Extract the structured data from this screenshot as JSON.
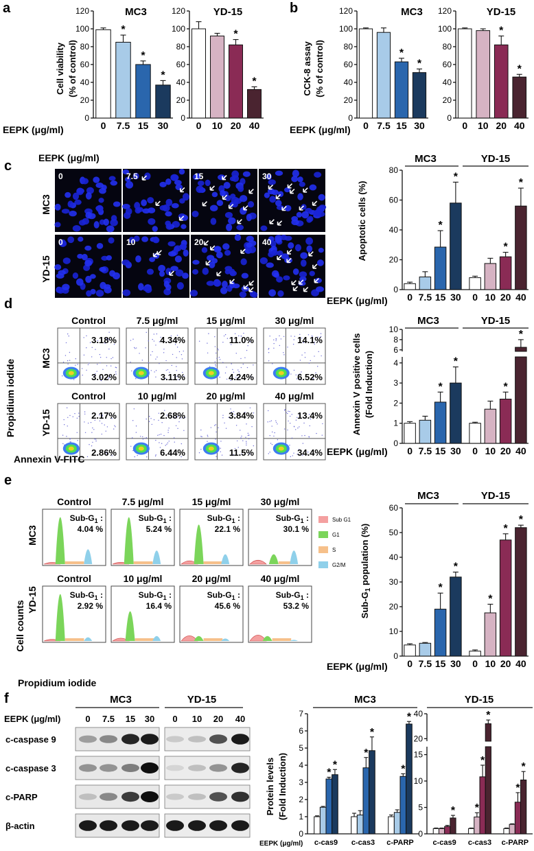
{
  "panel_letters": [
    "a",
    "b",
    "c",
    "d",
    "e",
    "f"
  ],
  "eepk_label": "EEPK (μg/ml)",
  "colors": {
    "white": "#ffffff",
    "mc3_1": "#a8cbe8",
    "mc3_2": "#2a66ad",
    "mc3_3": "#1b3a5e",
    "yd_1": "#d6b3c3",
    "yd_2": "#8a2b55",
    "yd_3": "#4a2430"
  },
  "panel_a": {
    "ylabel_line1": "Cell viability",
    "ylabel_line2": "(% of control)",
    "mc3_title": "MC3",
    "yd_title": "YD-15",
    "mc3_ticks": [
      "0",
      "7.5",
      "15",
      "30"
    ],
    "yd_ticks": [
      "0",
      "10",
      "20",
      "40"
    ]
  },
  "panel_b": {
    "ylabel_line1": "CCK-8 assay",
    "ylabel_line2": "(% of control)",
    "mc3_title": "MC3",
    "yd_title": "YD-15"
  },
  "panel_c": {
    "header": "EEPK (μg/ml)",
    "row_labels": [
      "MC3",
      "YD-15"
    ],
    "mc3_doses": [
      "0",
      "7.5",
      "15",
      "30"
    ],
    "yd_doses": [
      "0",
      "10",
      "20",
      "40"
    ],
    "ylabel": "Apoptotic cells (%)",
    "group_labels": [
      "MC3",
      "YD-15"
    ]
  },
  "panel_d": {
    "headers_mc3": [
      "Control",
      "7.5 μg/ml",
      "15 μg/ml",
      "30 μg/ml"
    ],
    "headers_yd": [
      "Control",
      "10 μg/ml",
      "20 μg/ml",
      "40 μg/ml"
    ],
    "mc3_upper": [
      "3.18%",
      "4.34%",
      "11.0%",
      "14.1%"
    ],
    "mc3_lower": [
      "3.02%",
      "3.11%",
      "4.24%",
      "6.52%"
    ],
    "yd_upper": [
      "2.17%",
      "2.68%",
      "3.84%",
      "13.4%"
    ],
    "yd_lower": [
      "2.86%",
      "6.44%",
      "11.5%",
      "34.4%"
    ],
    "row_labels": [
      "MC3",
      "YD-15"
    ],
    "y_axis": "Propidium iodide",
    "x_axis": "Annexin V-FITC",
    "ylabel_line1": "Annexin V positive cells",
    "ylabel_line2": "(Fold Induction)",
    "group_labels": [
      "MC3",
      "YD-15"
    ]
  },
  "panel_e": {
    "headers_mc3": [
      "Control",
      "7.5 μg/ml",
      "15 μg/ml",
      "30 μg/ml"
    ],
    "headers_yd": [
      "Control",
      "10 μg/ml",
      "20 μg/ml",
      "40 μg/ml"
    ],
    "subg1_label": "Sub-G",
    "subg1_sub": "1",
    "subg1_colon": " :",
    "mc3_values": [
      "4.04 %",
      "5.24 %",
      "22.1 %",
      "30.1 %"
    ],
    "yd_values": [
      "2.92 %",
      "16.4 %",
      "45.6 %",
      "53.2 %"
    ],
    "legend": [
      "Sub G1",
      "G1",
      "S",
      "G2/M"
    ],
    "legend_colors": [
      "#f4a0a0",
      "#7bd55a",
      "#f6c08a",
      "#8fd0ea"
    ],
    "row_labels": [
      "MC3",
      "YD-15"
    ],
    "y_axis": "Cell counts",
    "x_axis": "Propidium iodide",
    "ylabel_main": "Sub-G",
    "ylabel_sub": "1",
    "ylabel_rest": " population (%)",
    "group_labels": [
      "MC3",
      "YD-15"
    ]
  },
  "panel_f": {
    "mc3_title": "MC3",
    "yd_title": "YD-15",
    "eepk_label": "EEPK (μg/ml)",
    "mc3_doses": [
      "0",
      "7.5",
      "15",
      "30"
    ],
    "yd_doses": [
      "0",
      "10",
      "20",
      "40"
    ],
    "blot_labels": [
      "c-caspase 9",
      "c-caspase 3",
      "c-PARP",
      "β-actin"
    ],
    "ylabel_line1": "Protein levels",
    "ylabel_line2": "(Fold Induction)",
    "chart_mc3_title": "MC3",
    "chart_yd_title": "YD-15",
    "categories": [
      "c-cas9",
      "c-cas3",
      "c-PARP"
    ],
    "eepk_small": "EEPK (μg/ml)"
  },
  "chart_data": [
    {
      "type": "bar",
      "title": "MC3",
      "ylabel": "Cell viability (% of control)",
      "categories": [
        "0",
        "7.5",
        "15",
        "30"
      ],
      "values": [
        99,
        85,
        60,
        37
      ],
      "errors": [
        2,
        8,
        4,
        5
      ],
      "significant": [
        false,
        true,
        true,
        true
      ],
      "ylim": [
        0,
        120
      ],
      "yticks": [
        0,
        20,
        40,
        60,
        80,
        100,
        120
      ]
    },
    {
      "type": "bar",
      "title": "YD-15",
      "ylabel": "Cell viability (% of control)",
      "categories": [
        "0",
        "10",
        "20",
        "40"
      ],
      "values": [
        100,
        92,
        82,
        32
      ],
      "errors": [
        8,
        3,
        6,
        3
      ],
      "significant": [
        false,
        false,
        true,
        true
      ],
      "ylim": [
        0,
        120
      ],
      "yticks": [
        0,
        20,
        40,
        60,
        80,
        100,
        120
      ]
    },
    {
      "type": "bar",
      "title": "MC3",
      "ylabel": "CCK-8 assay (% of control)",
      "categories": [
        "0",
        "7.5",
        "15",
        "30"
      ],
      "values": [
        100,
        96,
        63,
        51
      ],
      "errors": [
        1,
        5,
        4,
        4
      ],
      "significant": [
        false,
        false,
        true,
        true
      ],
      "ylim": [
        0,
        120
      ],
      "yticks": [
        0,
        20,
        40,
        60,
        80,
        100,
        120
      ]
    },
    {
      "type": "bar",
      "title": "YD-15",
      "ylabel": "CCK-8 assay (% of control)",
      "categories": [
        "0",
        "10",
        "20",
        "40"
      ],
      "values": [
        100,
        98,
        82,
        46
      ],
      "errors": [
        1,
        2,
        10,
        3
      ],
      "significant": [
        false,
        false,
        true,
        true
      ],
      "ylim": [
        0,
        120
      ],
      "yticks": [
        0,
        20,
        40,
        60,
        80,
        100,
        120
      ]
    },
    {
      "type": "bar",
      "ylabel": "Apoptotic cells (%)",
      "categories": [
        "0",
        "7.5",
        "15",
        "30",
        "0",
        "10",
        "20",
        "40"
      ],
      "groups": [
        "MC3",
        "MC3",
        "MC3",
        "MC3",
        "YD-15",
        "YD-15",
        "YD-15",
        "YD-15"
      ],
      "values": [
        4,
        8.5,
        28.5,
        58,
        8,
        17.5,
        22,
        56
      ],
      "errors": [
        1,
        3.5,
        11,
        14,
        1,
        3.5,
        3,
        12
      ],
      "significant": [
        false,
        false,
        true,
        true,
        false,
        false,
        true,
        true
      ],
      "ylim": [
        0,
        80
      ],
      "yticks": [
        0,
        20,
        40,
        60,
        80
      ]
    },
    {
      "type": "bar",
      "ylabel": "Annexin V positive cells (Fold Induction)",
      "categories": [
        "0",
        "7.5",
        "15",
        "30",
        "0",
        "10",
        "20",
        "40"
      ],
      "groups": [
        "MC3",
        "MC3",
        "MC3",
        "MC3",
        "YD-15",
        "YD-15",
        "YD-15",
        "YD-15"
      ],
      "values": [
        1,
        1.15,
        2.05,
        3,
        1,
        1.7,
        2.2,
        6.5
      ],
      "errors": [
        0.08,
        0.2,
        0.5,
        0.8,
        0.05,
        0.4,
        0.35,
        1.5
      ],
      "significant": [
        false,
        false,
        true,
        true,
        false,
        false,
        true,
        true
      ],
      "ylim": [
        0,
        10
      ],
      "axis_break": [
        4.3,
        5.7
      ],
      "yticks": [
        0,
        1,
        2,
        3,
        4,
        6,
        8,
        10
      ]
    },
    {
      "type": "bar",
      "ylabel": "Sub-G1 population (%)",
      "categories": [
        "0",
        "7.5",
        "15",
        "30",
        "0",
        "10",
        "20",
        "40"
      ],
      "groups": [
        "MC3",
        "MC3",
        "MC3",
        "MC3",
        "YD-15",
        "YD-15",
        "YD-15",
        "YD-15"
      ],
      "values": [
        4.5,
        5.2,
        19,
        32,
        2,
        17.5,
        47,
        52
      ],
      "errors": [
        0.5,
        0.3,
        6.5,
        2,
        0.5,
        3.5,
        2.5,
        1
      ],
      "significant": [
        false,
        false,
        true,
        true,
        false,
        true,
        true,
        true
      ],
      "ylim": [
        0,
        60
      ],
      "yticks": [
        0,
        10,
        20,
        30,
        40,
        50,
        60
      ]
    },
    {
      "type": "bar",
      "title": "MC3",
      "ylabel": "Protein levels (Fold Induction)",
      "categories": [
        "c-cas9",
        "c-cas3",
        "c-PARP"
      ],
      "doses": [
        "0",
        "7.5",
        "15",
        "30"
      ],
      "series": [
        {
          "values": [
            1,
            1,
            1
          ],
          "errors": [
            0.05,
            0.2,
            0.1
          ]
        },
        {
          "values": [
            1.55,
            1.1,
            1.25
          ],
          "errors": [
            0.05,
            0.25,
            0.15
          ]
        },
        {
          "values": [
            3.2,
            3.85,
            3.35
          ],
          "errors": [
            0.1,
            0.6,
            0.15
          ]
        },
        {
          "values": [
            3.45,
            4.85,
            6.4
          ],
          "errors": [
            0.3,
            0.8,
            0.15
          ]
        }
      ],
      "significant": [
        [
          false,
          false,
          false
        ],
        [
          false,
          false,
          false
        ],
        [
          true,
          true,
          true
        ],
        [
          true,
          true,
          true
        ]
      ],
      "ylim": [
        0,
        7
      ],
      "yticks": [
        0,
        1,
        2,
        3,
        4,
        5,
        6,
        7
      ]
    },
    {
      "type": "bar",
      "title": "YD-15",
      "ylabel": "Protein levels (Fold Induction)",
      "categories": [
        "c-cas9",
        "c-cas3",
        "c-PARP"
      ],
      "doses": [
        "0",
        "10",
        "20",
        "40"
      ],
      "series": [
        {
          "values": [
            1,
            1,
            1
          ],
          "errors": [
            0.1,
            0.1,
            0.1
          ]
        },
        {
          "values": [
            1,
            3.2,
            1.8
          ],
          "errors": [
            0.1,
            0.8,
            0.1
          ]
        },
        {
          "values": [
            1.4,
            10.8,
            6
          ],
          "errors": [
            0.2,
            2.2,
            1.8
          ]
        },
        {
          "values": [
            3,
            32,
            10.2
          ],
          "errors": [
            0.5,
            3,
            1.6
          ]
        }
      ],
      "significant": [
        [
          false,
          false,
          false
        ],
        [
          false,
          true,
          false
        ],
        [
          false,
          true,
          true
        ],
        [
          true,
          true,
          true
        ]
      ],
      "ylim": [
        0,
        40
      ],
      "axis_break": [
        16.5,
        18
      ],
      "yticks": [
        0,
        5,
        10,
        15,
        20,
        40
      ]
    }
  ]
}
